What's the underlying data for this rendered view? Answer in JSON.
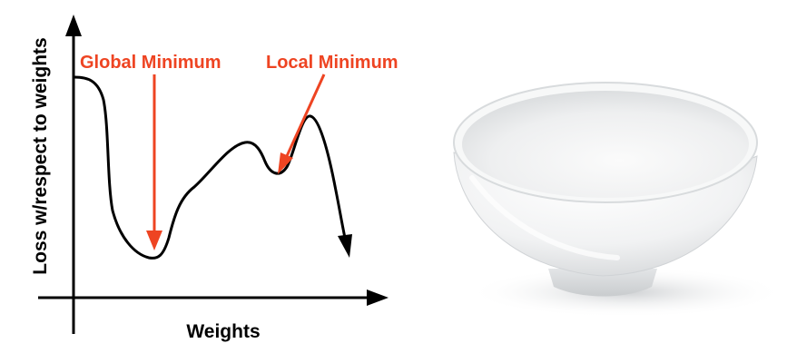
{
  "diagram": {
    "xlabel": "Weights",
    "ylabel": "Loss w/respect to weights",
    "annotations": [
      {
        "label": "Global Minimum"
      },
      {
        "label": "Local Minimum"
      }
    ]
  },
  "colors": {
    "annotation": "#ee4422",
    "axis": "#000000",
    "curve": "#000000"
  },
  "image": {
    "subject": "white-bowl"
  }
}
